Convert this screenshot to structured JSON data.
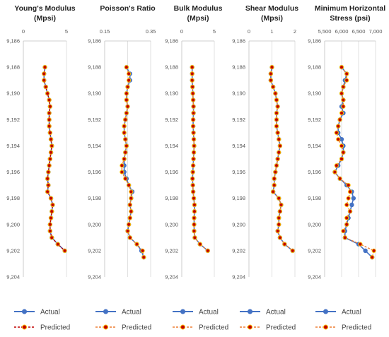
{
  "colors": {
    "actual": "#4472c4",
    "predicted_default": "#ed7d31",
    "predicted_youngs": "#c00000",
    "marker_fill": "#c00000",
    "marker_edge": "#ffc000",
    "grid": "#d9d9d9"
  },
  "legend": {
    "actual": "Actual",
    "predicted": "Predicted"
  },
  "depth_ticks": [
    "9,186",
    "9,188",
    "9,190",
    "9,192",
    "9,194",
    "9,196",
    "9,198",
    "9,200",
    "9,202",
    "9,204"
  ],
  "chart_data": [
    {
      "type": "line",
      "title": [
        "Young's Modulus",
        "(Mpsi)"
      ],
      "xlim": [
        0,
        5
      ],
      "ylim": [
        9186,
        9204
      ],
      "y_reversed": true,
      "xticks": [
        0,
        5
      ],
      "xtick_labels": [
        "0",
        "5"
      ],
      "predicted_color": "#c00000",
      "y": [
        9188,
        9188.5,
        9189,
        9189.5,
        9190,
        9190.5,
        9191,
        9191.5,
        9192,
        9192.5,
        9193,
        9193.5,
        9194,
        9194.5,
        9195,
        9195.5,
        9196,
        9196.5,
        9197,
        9197.5,
        9198,
        9198.5,
        9199,
        9199.5,
        9200,
        9200.5,
        9201,
        9201.5,
        9202
      ],
      "series": [
        {
          "name": "Actual",
          "values": [
            2.5,
            2.4,
            2.4,
            2.6,
            2.8,
            3.0,
            3.1,
            3.0,
            3.0,
            3.0,
            3.1,
            3.2,
            3.3,
            3.2,
            3.1,
            3.0,
            2.9,
            2.8,
            2.9,
            2.8,
            3.2,
            3.4,
            3.3,
            3.2,
            3.1,
            3.1,
            3.3,
            4.0,
            4.8
          ]
        },
        {
          "name": "Predicted",
          "values": [
            2.5,
            2.4,
            2.4,
            2.6,
            2.8,
            3.0,
            3.1,
            3.0,
            3.0,
            3.0,
            3.1,
            3.2,
            3.3,
            3.2,
            3.1,
            3.0,
            2.9,
            2.8,
            2.9,
            2.8,
            3.2,
            3.4,
            3.3,
            3.2,
            3.1,
            3.1,
            3.3,
            4.0,
            4.8
          ]
        }
      ]
    },
    {
      "type": "line",
      "title": [
        "Poisson's Ratio",
        ""
      ],
      "xlim": [
        0.15,
        0.35
      ],
      "ylim": [
        9186,
        9204
      ],
      "y_reversed": true,
      "xticks": [
        0.15,
        0.25,
        0.35
      ],
      "xtick_labels": [
        "0.15",
        "",
        "0.35"
      ],
      "predicted_color": "#ed7d31",
      "y": [
        9188,
        9188.5,
        9189,
        9189.5,
        9190,
        9190.5,
        9191,
        9191.5,
        9192,
        9192.5,
        9193,
        9193.5,
        9194,
        9194.5,
        9195,
        9195.5,
        9196,
        9196.5,
        9197,
        9197.5,
        9198,
        9198.5,
        9199,
        9199.5,
        9200,
        9200.5,
        9201,
        9201.5,
        9202,
        9202.5
      ],
      "series": [
        {
          "name": "Actual",
          "values": [
            0.245,
            0.26,
            0.26,
            0.25,
            0.245,
            0.245,
            0.25,
            0.245,
            0.24,
            0.235,
            0.235,
            0.24,
            0.245,
            0.24,
            0.235,
            0.235,
            0.235,
            0.245,
            0.255,
            0.27,
            0.265,
            0.26,
            0.265,
            0.26,
            0.255,
            0.25,
            0.26,
            0.29,
            0.31,
            0.32
          ]
        },
        {
          "name": "Predicted",
          "values": [
            0.245,
            0.255,
            0.255,
            0.25,
            0.245,
            0.245,
            0.25,
            0.245,
            0.24,
            0.235,
            0.235,
            0.24,
            0.245,
            0.24,
            0.235,
            0.225,
            0.225,
            0.24,
            0.255,
            0.265,
            0.265,
            0.26,
            0.265,
            0.26,
            0.255,
            0.25,
            0.26,
            0.29,
            0.315,
            0.32
          ]
        }
      ]
    },
    {
      "type": "line",
      "title": [
        "Bulk Modulus",
        "(Mpsi)"
      ],
      "xlim": [
        0,
        5
      ],
      "ylim": [
        9186,
        9204
      ],
      "y_reversed": true,
      "xticks": [
        0,
        5
      ],
      "xtick_labels": [
        "0",
        "5"
      ],
      "predicted_color": "#ed7d31",
      "y": [
        9188,
        9188.5,
        9189,
        9189.5,
        9190,
        9190.5,
        9191,
        9191.5,
        9192,
        9192.5,
        9193,
        9193.5,
        9194,
        9194.5,
        9195,
        9195.5,
        9196,
        9196.5,
        9197,
        9197.5,
        9198,
        9198.5,
        9199,
        9199.5,
        9200,
        9200.5,
        9201,
        9201.5,
        9202
      ],
      "series": [
        {
          "name": "Actual",
          "values": [
            1.6,
            1.6,
            1.6,
            1.65,
            1.7,
            1.75,
            1.8,
            1.8,
            1.75,
            1.75,
            1.8,
            1.85,
            1.9,
            1.85,
            1.8,
            1.75,
            1.7,
            1.65,
            1.7,
            1.75,
            1.85,
            1.95,
            1.95,
            1.9,
            1.9,
            1.9,
            2.0,
            2.8,
            4.0
          ]
        },
        {
          "name": "Predicted",
          "values": [
            1.6,
            1.6,
            1.6,
            1.65,
            1.7,
            1.75,
            1.8,
            1.8,
            1.75,
            1.75,
            1.8,
            1.85,
            1.9,
            1.85,
            1.8,
            1.75,
            1.7,
            1.65,
            1.7,
            1.75,
            1.85,
            1.95,
            1.95,
            1.9,
            1.9,
            1.9,
            2.0,
            2.8,
            4.0
          ]
        }
      ]
    },
    {
      "type": "line",
      "title": [
        "Shear Modulus",
        "(Mpsi)"
      ],
      "xlim": [
        0,
        2
      ],
      "ylim": [
        9186,
        9204
      ],
      "y_reversed": true,
      "xticks": [
        0,
        1,
        2
      ],
      "xtick_labels": [
        "0",
        "1",
        "2"
      ],
      "predicted_color": "#ed7d31",
      "y": [
        9188,
        9188.5,
        9189,
        9189.5,
        9190,
        9190.5,
        9191,
        9191.5,
        9192,
        9192.5,
        9193,
        9193.5,
        9194,
        9194.5,
        9195,
        9195.5,
        9196,
        9196.5,
        9197,
        9197.5,
        9198,
        9198.5,
        9199,
        9199.5,
        9200,
        9200.5,
        9201,
        9201.5,
        9202
      ],
      "series": [
        {
          "name": "Actual",
          "values": [
            1.0,
            0.95,
            0.95,
            1.05,
            1.15,
            1.2,
            1.25,
            1.2,
            1.2,
            1.2,
            1.25,
            1.3,
            1.35,
            1.3,
            1.25,
            1.2,
            1.15,
            1.1,
            1.1,
            1.05,
            1.3,
            1.4,
            1.35,
            1.3,
            1.3,
            1.25,
            1.35,
            1.55,
            1.9
          ]
        },
        {
          "name": "Predicted",
          "values": [
            1.0,
            0.95,
            0.95,
            1.05,
            1.15,
            1.2,
            1.25,
            1.2,
            1.2,
            1.2,
            1.25,
            1.3,
            1.35,
            1.3,
            1.25,
            1.2,
            1.15,
            1.1,
            1.1,
            1.05,
            1.3,
            1.4,
            1.35,
            1.3,
            1.3,
            1.25,
            1.35,
            1.55,
            1.9
          ]
        }
      ]
    },
    {
      "type": "line",
      "title": [
        "Minimum Horizontal",
        "Stress (psi)"
      ],
      "xlim": [
        5500,
        7000
      ],
      "ylim": [
        9186,
        9204
      ],
      "y_reversed": true,
      "xticks": [
        5500,
        6000,
        6500,
        7000
      ],
      "xtick_labels": [
        "5,500",
        "6,000",
        "6,500",
        "7,000"
      ],
      "predicted_color": "#ed7d31",
      "y": [
        9188,
        9188.5,
        9189,
        9189.5,
        9190,
        9190.5,
        9191,
        9191.5,
        9192,
        9192.5,
        9193,
        9193.5,
        9194,
        9194.5,
        9195,
        9195.5,
        9196,
        9196.5,
        9197,
        9197.5,
        9198,
        9198.5,
        9199,
        9199.5,
        9200,
        9200.5,
        9201,
        9201.5,
        9202,
        9202.5
      ],
      "series": [
        {
          "name": "Actual",
          "values": [
            6000,
            6150,
            6100,
            6050,
            6000,
            6050,
            6000,
            6050,
            5950,
            5900,
            5900,
            6000,
            6050,
            6050,
            6000,
            5900,
            5800,
            5950,
            6150,
            6300,
            6350,
            6300,
            6250,
            6200,
            6150,
            6100,
            6100,
            6500,
            6700,
            6900
          ]
        },
        {
          "name": "Predicted",
          "values": [
            6000,
            6150,
            6150,
            6050,
            6000,
            6050,
            6050,
            6000,
            5950,
            5900,
            5850,
            5900,
            6000,
            6050,
            6000,
            5850,
            5800,
            5950,
            6200,
            6250,
            6200,
            6150,
            6250,
            6150,
            6150,
            6050,
            6100,
            6550,
            6950,
            6900
          ]
        }
      ]
    }
  ]
}
